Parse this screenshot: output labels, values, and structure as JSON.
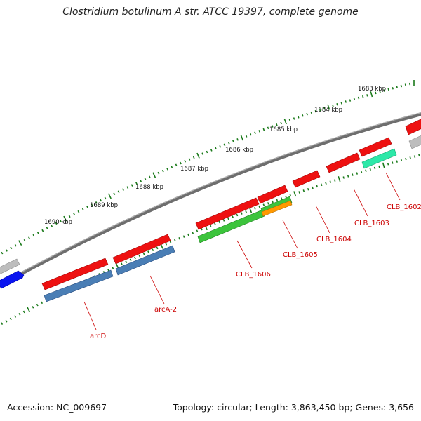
{
  "title": "Clostridium botulinum A str. ATCC 19397, complete genome",
  "accession": "Accession: NC_009697",
  "topology": "Topology: circular",
  "length": "Length: 3,863,450 bp",
  "genes_count": "Genes: 3,656",
  "colors": {
    "backbone": "#7f7f7f",
    "tick": "#1a7a1a",
    "label": "#cc0000",
    "cds_forward": "#ee1111",
    "cds_reverse": "#4a7eb5",
    "green": "#3cc43c",
    "orange": "#ff9900",
    "teal": "#2de8a8",
    "grey": "#b8b8b8",
    "blue": "#0a14f0"
  },
  "kbp_labels": [
    "1683 kbp",
    "1684 kbp",
    "1685 kbp",
    "1686 kbp",
    "1687 kbp",
    "1688 kbp",
    "1689 kbp",
    "1690 kbp"
  ],
  "genes": [
    {
      "name": "CLB_1602",
      "color": "teal"
    },
    {
      "name": "CLB_1603",
      "color": "cds_forward"
    },
    {
      "name": "CLB_1604",
      "color": "cds_forward"
    },
    {
      "name": "CLB_1605",
      "color": "orange"
    },
    {
      "name": "CLB_1606",
      "color": "green"
    },
    {
      "name": "arcA-2",
      "color": "cds_reverse"
    },
    {
      "name": "arcD",
      "color": "cds_reverse"
    }
  ]
}
